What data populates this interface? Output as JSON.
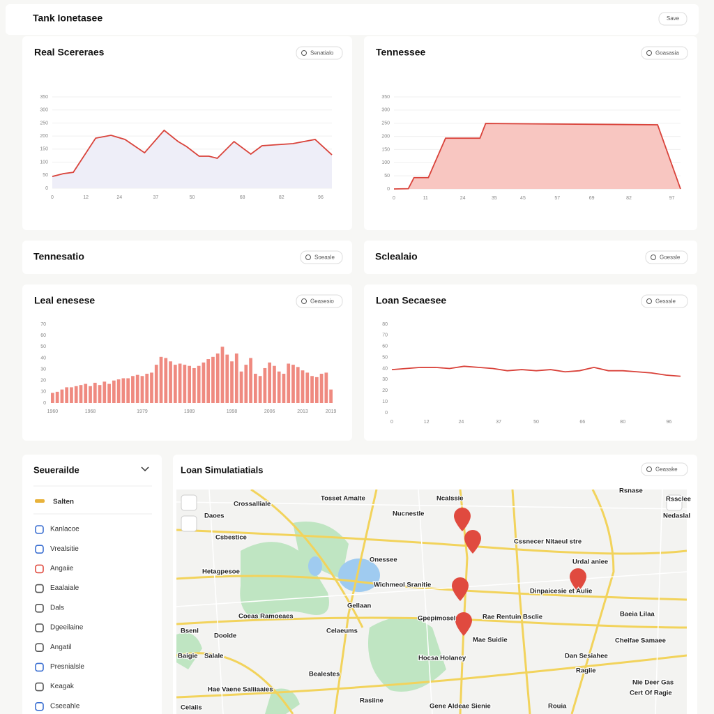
{
  "header": {
    "title": "Tank Ionetasee",
    "button": "Save"
  },
  "chart_data": [
    {
      "type": "area",
      "title": "Real Scereraes",
      "button": "Senatialo",
      "color": "#d9423a",
      "fill": "#eeeef8",
      "x": [
        0,
        4,
        7.5,
        15.5,
        21,
        26,
        33,
        40,
        45,
        48,
        52.5,
        56,
        59,
        65,
        71,
        75,
        86,
        94,
        100
      ],
      "values": [
        45,
        56,
        61,
        192,
        203,
        187,
        136,
        222,
        179,
        160,
        123,
        123,
        115,
        179,
        131,
        163,
        171,
        187,
        128
      ],
      "xlim": [
        0,
        100
      ],
      "xticks": [
        0,
        12,
        24,
        37,
        50,
        68,
        82,
        96
      ],
      "ylim": [
        0,
        350
      ],
      "yticks": [
        0,
        50,
        100,
        150,
        200,
        250,
        300,
        350
      ],
      "grid": true
    },
    {
      "type": "area",
      "title": "Tennessee",
      "button": "Goasasia",
      "color": "#d9423a",
      "fill": "#f8c6c1",
      "x": [
        0,
        5,
        7,
        12,
        18,
        30,
        32,
        92,
        100
      ],
      "values": [
        0,
        1,
        43,
        43,
        193,
        193,
        249,
        244,
        0
      ],
      "xlim": [
        0,
        100
      ],
      "xticks": [
        0,
        11,
        24,
        35,
        45,
        57,
        69,
        82,
        97
      ],
      "ylim": [
        0,
        350
      ],
      "yticks": [
        0,
        50,
        100,
        150,
        200,
        250,
        300,
        350
      ],
      "grid": true
    },
    {
      "type": "bar",
      "title": "Leal enesese",
      "button": "Geasesio",
      "color": "#ef8a80",
      "categories": [
        "1960",
        null,
        null,
        null,
        null,
        null,
        null,
        null,
        "1968",
        null,
        null,
        null,
        null,
        null,
        null,
        null,
        null,
        null,
        null,
        "1979",
        null,
        null,
        null,
        null,
        null,
        null,
        null,
        null,
        null,
        "1989",
        null,
        null,
        null,
        null,
        null,
        null,
        null,
        null,
        "1998",
        null,
        null,
        null,
        null,
        null,
        null,
        null,
        "2006",
        null,
        null,
        null,
        null,
        null,
        null,
        "2013",
        null,
        null,
        null,
        null,
        null,
        "2019"
      ],
      "values": [
        9,
        10,
        12,
        14,
        14,
        15,
        16,
        17,
        15,
        18,
        16,
        19,
        17,
        20,
        21,
        22,
        22,
        24,
        25,
        24,
        26,
        27,
        34,
        41,
        40,
        37,
        34,
        35,
        34,
        33,
        31,
        33,
        36,
        39,
        41,
        44,
        50,
        43,
        37,
        44,
        28,
        34,
        40,
        26,
        24,
        31,
        36,
        33,
        28,
        26,
        35,
        34,
        32,
        29,
        27,
        24,
        23,
        26,
        27,
        12
      ],
      "ylim": [
        0,
        70
      ],
      "yticks": [
        0,
        10,
        20,
        30,
        40,
        50,
        60,
        70
      ],
      "grid": false
    },
    {
      "type": "line",
      "title": "Loan Secaesee",
      "button": "Gesssle",
      "color": "#d9423a",
      "x": [
        0,
        5,
        10,
        15,
        20,
        25,
        30,
        35,
        40,
        45,
        50,
        55,
        60,
        65,
        70,
        75,
        80,
        85,
        90,
        95,
        100
      ],
      "values": [
        39,
        40,
        41,
        41,
        40,
        42,
        41,
        40,
        38,
        39,
        38,
        39,
        37,
        38,
        41,
        38,
        38,
        37,
        36,
        34,
        33
      ],
      "xlim": [
        0,
        100
      ],
      "xticks": [
        0,
        12,
        24,
        37,
        50,
        66,
        80,
        96
      ],
      "ylim": [
        0,
        80
      ],
      "yticks": [
        0,
        10,
        20,
        30,
        40,
        50,
        60,
        70,
        80
      ],
      "grid": false
    }
  ],
  "panels": [
    {
      "title": "Tennesatio",
      "button": "Soeasle"
    },
    {
      "title": "Sclealaio",
      "button": "Goessle"
    }
  ],
  "sidebar": {
    "title": "Seuerailde",
    "active": "Salten",
    "items": [
      "Kanlacoe",
      "Vrealsitie",
      "Angaiie",
      "Eaalaiale",
      "Dals",
      "Dgeeilaine",
      "Angatil",
      "Presnialsle",
      "Keagak",
      "Cseeahle"
    ]
  },
  "map": {
    "title": "Loan Simulatiatials",
    "button": "Geasske",
    "labels": [
      "Crossalliale",
      "Tosset Amalte",
      "Ncalssie",
      "Rsnase",
      "Daoes",
      "Nucnestle",
      "Rssclee",
      "Nedaslal",
      "Csbestice",
      "Cssnecer Nitaeul stre",
      "Onessee",
      "Urdal aniee",
      "Hetagpesoe",
      "Wichmeol Sranitie",
      "Dinpaicesie et Aulie",
      "Gellaan",
      "Coeas Ramoeaes",
      "Rae Rentuin Bsclie",
      "Gpepimosel",
      "Baeia Lilaa",
      "Bsenl",
      "Dooide",
      "Celaeums",
      "Mae Suidie",
      "Cheifae Samaee",
      "Baigie",
      "Salale",
      "Hocsa Holaney",
      "Dan Sesiahee",
      "Bealestes",
      "Ragiie",
      "Hae Vaene Saliiaaies",
      "Nie Deer Gas",
      "Cert Of Ragie",
      "Rasiine",
      "Celaiis",
      "Gene Aldeae Sienie",
      "Rouia"
    ]
  }
}
